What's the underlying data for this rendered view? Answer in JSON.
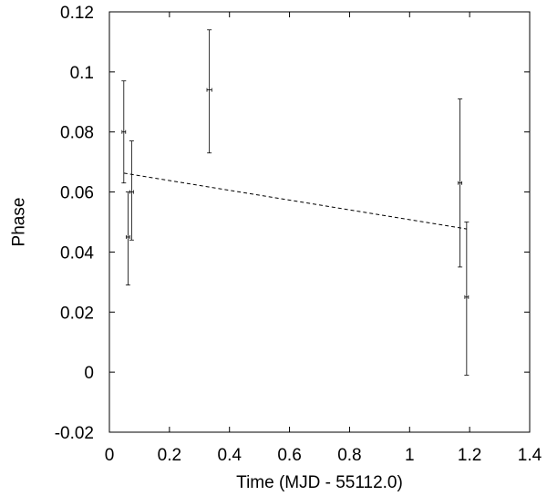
{
  "chart_data": {
    "type": "scatter",
    "title": "",
    "xlabel": "Time (MJD - 55112.0)",
    "ylabel": "Phase",
    "xlim": [
      0,
      1.4
    ],
    "ylim": [
      -0.02,
      0.12
    ],
    "xticks": [
      "0",
      "0.2",
      "0.4",
      "0.6",
      "0.8",
      "1",
      "1.2",
      "1.4"
    ],
    "yticks": [
      "-0.02",
      "0",
      "0.02",
      "0.04",
      "0.06",
      "0.08",
      "0.1",
      "0.12"
    ],
    "grid": false,
    "legend": "none",
    "series": [
      {
        "type": "errorbar",
        "color": "#000000",
        "points": [
          {
            "x": 0.048,
            "y": 0.08,
            "ylo": 0.063,
            "yhi": 0.097,
            "xerr": 0.006
          },
          {
            "x": 0.062,
            "y": 0.045,
            "ylo": 0.029,
            "yhi": 0.06,
            "xerr": 0.006
          },
          {
            "x": 0.074,
            "y": 0.06,
            "ylo": 0.044,
            "yhi": 0.077,
            "xerr": 0.006
          },
          {
            "x": 0.333,
            "y": 0.094,
            "ylo": 0.073,
            "yhi": 0.114,
            "xerr": 0.008
          },
          {
            "x": 1.168,
            "y": 0.063,
            "ylo": 0.035,
            "yhi": 0.091,
            "xerr": 0.006
          },
          {
            "x": 1.19,
            "y": 0.025,
            "ylo": -0.001,
            "yhi": 0.05,
            "xerr": 0.006
          }
        ]
      },
      {
        "type": "fit",
        "style": "dashed",
        "color": "#000000",
        "x": [
          0.048,
          1.19
        ],
        "y": [
          0.0663,
          0.0477
        ]
      }
    ]
  }
}
